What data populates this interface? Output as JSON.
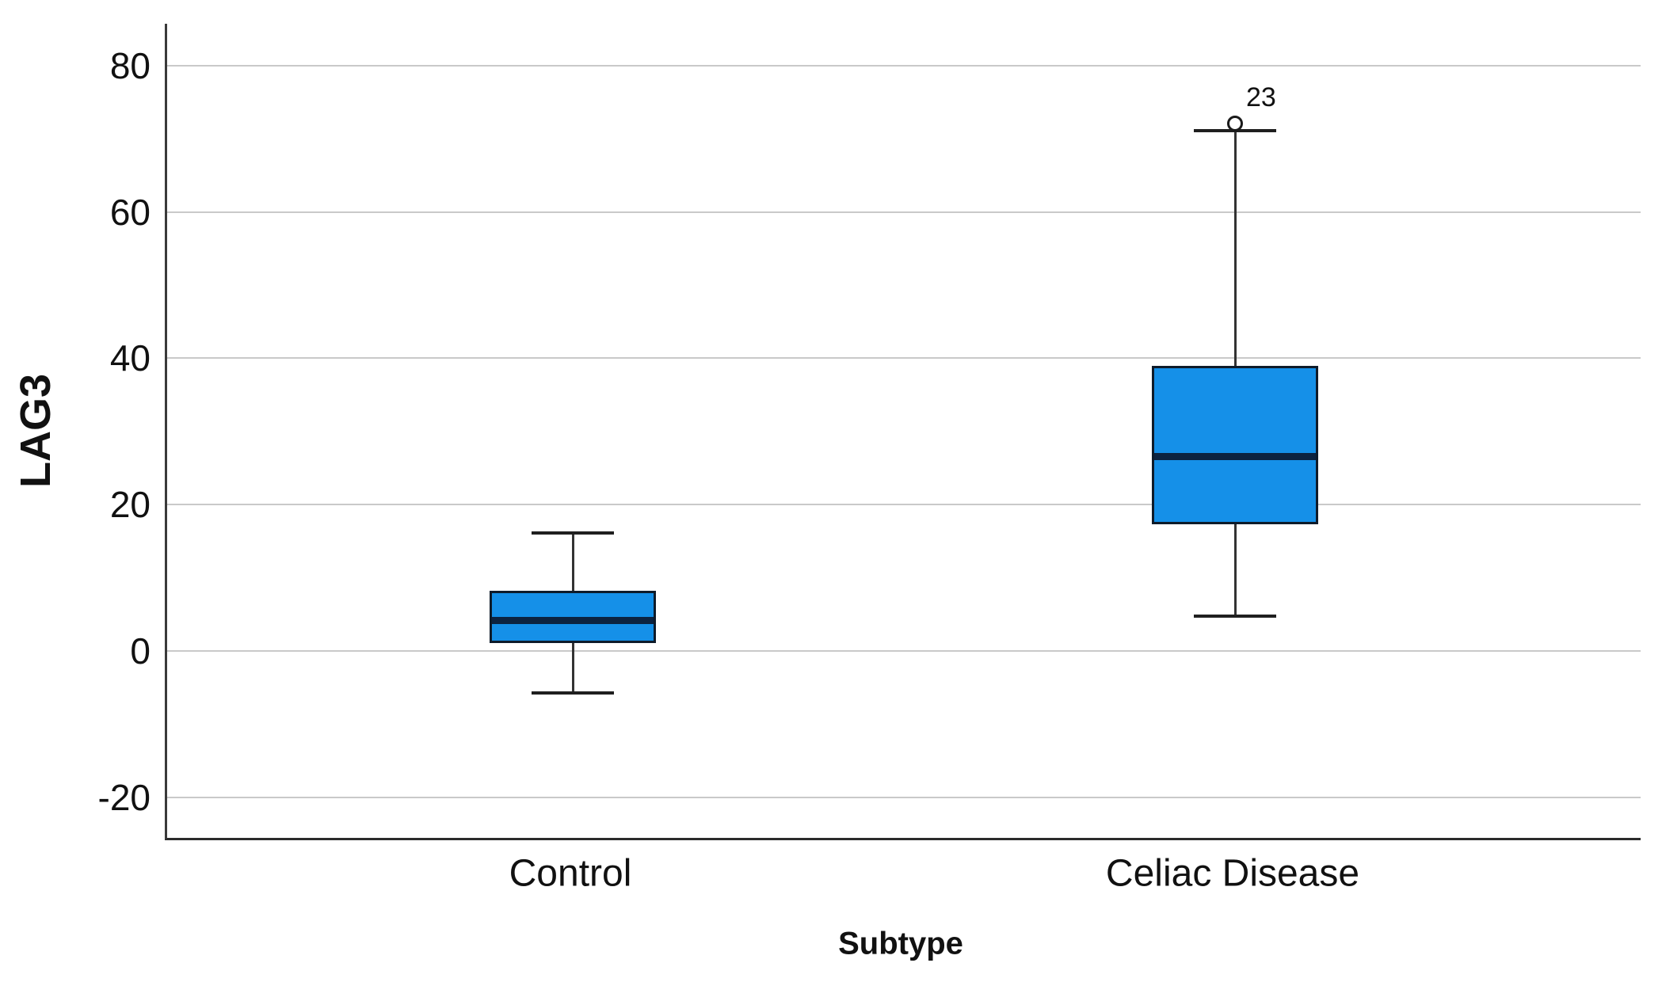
{
  "chart_data": {
    "type": "boxplot",
    "title": "",
    "ylabel": "LAG3",
    "xlabel": "Subtype",
    "categories": [
      "Control",
      "Celiac Disease"
    ],
    "yticks": [
      80,
      60,
      40,
      20,
      0,
      -20
    ],
    "ylim": [
      -25.5,
      85.7
    ],
    "grid": "horizontal",
    "legend": "none",
    "series": [
      {
        "category": "Control",
        "whisker_low": -5.7,
        "q1": 1.1,
        "median": 4.2,
        "q3": 8.2,
        "whisker_high": 16.2,
        "outliers": []
      },
      {
        "category": "Celiac Disease",
        "whisker_low": 4.8,
        "q1": 17.3,
        "median": 26.6,
        "q3": 39.0,
        "whisker_high": 71.1,
        "outliers": [
          {
            "value": 72.1,
            "label": "23"
          }
        ]
      }
    ],
    "colors": {
      "box_fill": "#1590E8",
      "box_border": "#0E1B2A",
      "median": "#0C2340",
      "whisker": "#333333",
      "outlier_stroke": "#1a1a1a",
      "gridline": "#c9c9c9",
      "axis": "#3a3a3a",
      "text": "#111111"
    }
  }
}
